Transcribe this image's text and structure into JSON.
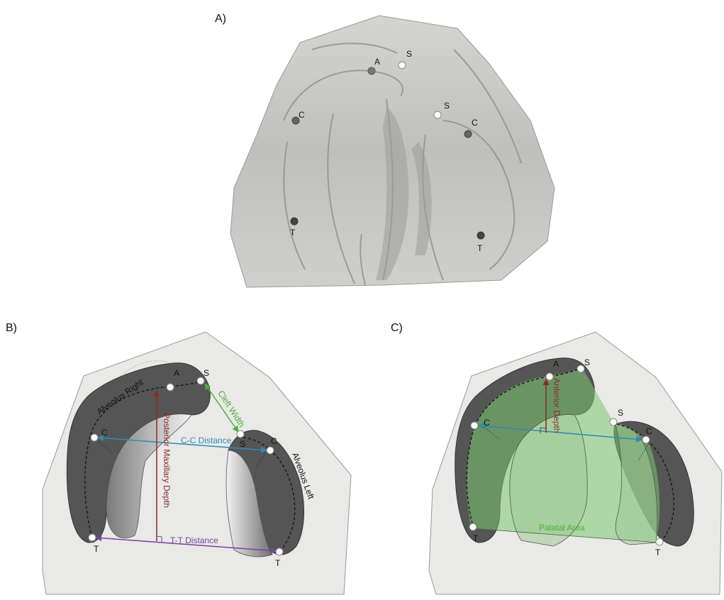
{
  "panels": {
    "a": {
      "label": "A)"
    },
    "b": {
      "label": "B)"
    },
    "c": {
      "label": "C)"
    }
  },
  "points": {
    "A": "A",
    "S": "S",
    "C": "C",
    "T": "T"
  },
  "measurements": {
    "alveolus_right": "Alveolus Right",
    "alveolus_left": "Alveolus Left",
    "cleft_width": "Cleft Width",
    "cc_distance": "C-C Distance",
    "posterior_maxillary_depth": "Posterior Maxillary Depth",
    "tt_distance": "T-T Distance",
    "anterior_depth": "Anterior Depth",
    "palatal_area": "Palatal Area"
  },
  "colors": {
    "cleft_width": "#4caf3a",
    "cc_distance": "#2e8bb5",
    "posterior_maxillary_depth": "#8b2a2a",
    "tt_distance": "#7b3fa0",
    "palatal_area": "#4fae48",
    "alveolus": "#555555",
    "cast_background": "#e9e9e7"
  }
}
